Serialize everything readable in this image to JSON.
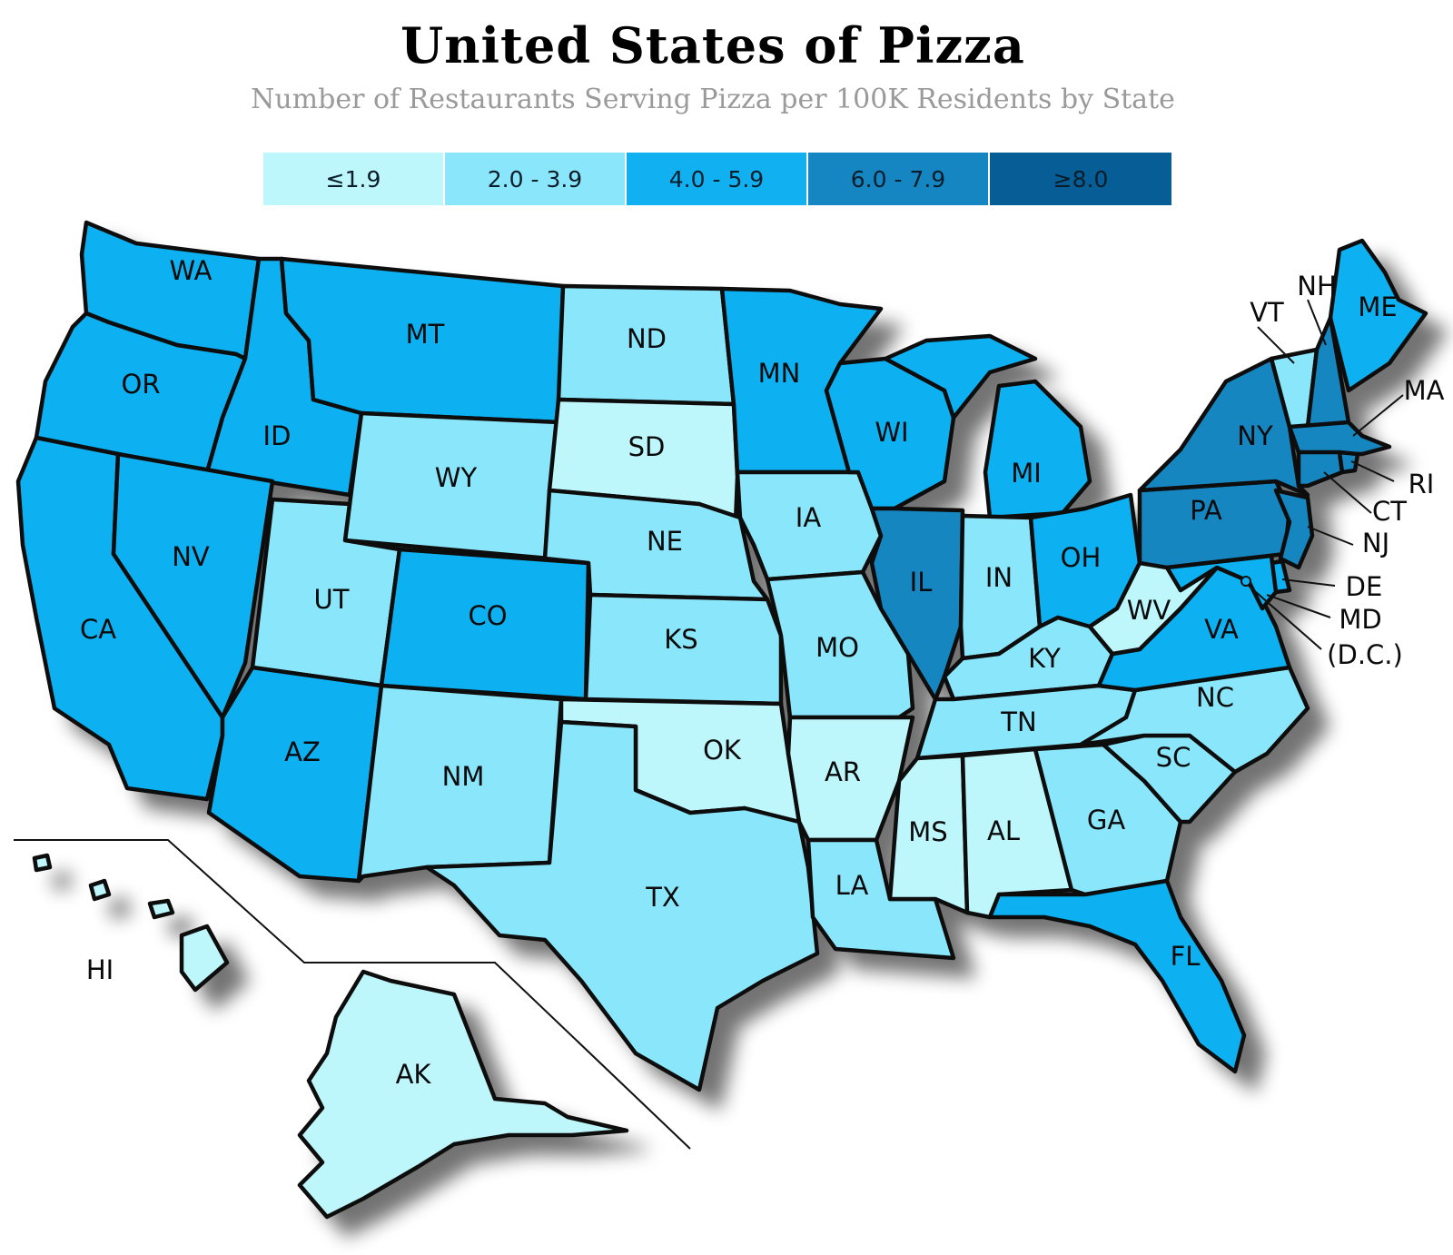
{
  "title": "United States of Pizza",
  "subtitle": "Number of Restaurants Serving Pizza per 100K Residents by State",
  "legend": [
    {
      "label": "≤1.9",
      "color": "#bdf6fb"
    },
    {
      "label": "2.0 - 3.9",
      "color": "#8ae6fb"
    },
    {
      "label": "4.0 - 5.9",
      "color": "#11b1f1"
    },
    {
      "label": "6.0 - 7.9",
      "color": "#1586c1"
    },
    {
      "label": "≥8.0",
      "color": "#075d96"
    }
  ],
  "states": {
    "WA": {
      "label": "WA",
      "bin": 2
    },
    "OR": {
      "label": "OR",
      "bin": 2
    },
    "CA": {
      "label": "CA",
      "bin": 2
    },
    "ID": {
      "label": "ID",
      "bin": 2
    },
    "NV": {
      "label": "NV",
      "bin": 2
    },
    "MT": {
      "label": "MT",
      "bin": 2
    },
    "WY": {
      "label": "WY",
      "bin": 1
    },
    "UT": {
      "label": "UT",
      "bin": 1
    },
    "AZ": {
      "label": "AZ",
      "bin": 2
    },
    "CO": {
      "label": "CO",
      "bin": 2
    },
    "NM": {
      "label": "NM",
      "bin": 1
    },
    "ND": {
      "label": "ND",
      "bin": 1
    },
    "SD": {
      "label": "SD",
      "bin": 0
    },
    "NE": {
      "label": "NE",
      "bin": 1
    },
    "KS": {
      "label": "KS",
      "bin": 1
    },
    "OK": {
      "label": "OK",
      "bin": 0
    },
    "TX": {
      "label": "TX",
      "bin": 1
    },
    "MN": {
      "label": "MN",
      "bin": 2
    },
    "IA": {
      "label": "IA",
      "bin": 1
    },
    "MO": {
      "label": "MO",
      "bin": 1
    },
    "AR": {
      "label": "AR",
      "bin": 0
    },
    "LA": {
      "label": "LA",
      "bin": 1
    },
    "WI": {
      "label": "WI",
      "bin": 2
    },
    "IL": {
      "label": "IL",
      "bin": 3
    },
    "MI": {
      "label": "MI",
      "bin": 2
    },
    "IN": {
      "label": "IN",
      "bin": 1
    },
    "OH": {
      "label": "OH",
      "bin": 2
    },
    "KY": {
      "label": "KY",
      "bin": 1
    },
    "TN": {
      "label": "TN",
      "bin": 1
    },
    "MS": {
      "label": "MS",
      "bin": 0
    },
    "AL": {
      "label": "AL",
      "bin": 0
    },
    "GA": {
      "label": "GA",
      "bin": 1
    },
    "FL": {
      "label": "FL",
      "bin": 2
    },
    "SC": {
      "label": "SC",
      "bin": 1
    },
    "NC": {
      "label": "NC",
      "bin": 1
    },
    "VA": {
      "label": "VA",
      "bin": 2
    },
    "WV": {
      "label": "WV",
      "bin": 0
    },
    "PA": {
      "label": "PA",
      "bin": 3
    },
    "NY": {
      "label": "NY",
      "bin": 3
    },
    "VT": {
      "label": "VT",
      "bin": 1
    },
    "NH": {
      "label": "NH",
      "bin": 3
    },
    "ME": {
      "label": "ME",
      "bin": 2
    },
    "MA": {
      "label": "MA",
      "bin": 3
    },
    "RI": {
      "label": "RI",
      "bin": 3
    },
    "CT": {
      "label": "CT",
      "bin": 3
    },
    "NJ": {
      "label": "NJ",
      "bin": 3
    },
    "DE": {
      "label": "DE",
      "bin": 2
    },
    "MD": {
      "label": "MD",
      "bin": 2
    },
    "DC": {
      "label": "(D.C.)",
      "bin": 2
    },
    "AK": {
      "label": "AK",
      "bin": 0
    },
    "HI": {
      "label": "HI",
      "bin": 0
    }
  }
}
